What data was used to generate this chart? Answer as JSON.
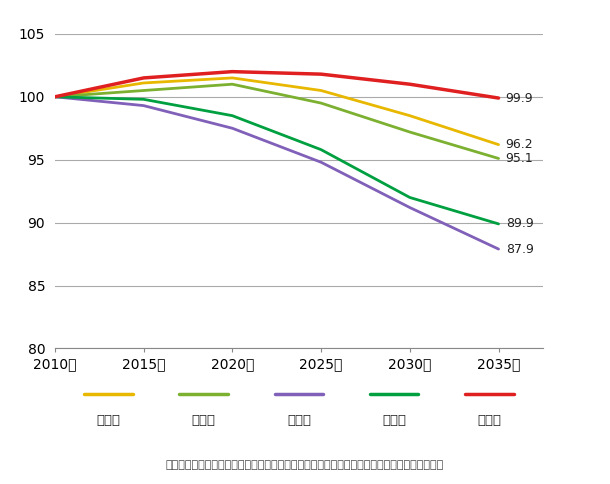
{
  "x": [
    2010,
    2015,
    2020,
    2025,
    2030,
    2035
  ],
  "series": [
    {
      "name": "東京都",
      "color": "#e8b800",
      "linewidth": 2.0,
      "values": [
        100.0,
        101.1,
        101.5,
        100.5,
        98.5,
        96.2
      ]
    },
    {
      "name": "愛知県",
      "color": "#7cb030",
      "linewidth": 2.0,
      "values": [
        100.0,
        100.5,
        101.0,
        99.5,
        97.2,
        95.1
      ]
    },
    {
      "name": "大阪府",
      "color": "#8060b8",
      "linewidth": 2.0,
      "values": [
        100.0,
        99.3,
        97.5,
        94.8,
        91.2,
        87.9
      ]
    },
    {
      "name": "福岡県",
      "color": "#00a040",
      "linewidth": 2.0,
      "values": [
        100.0,
        99.8,
        98.5,
        95.8,
        92.0,
        89.9
      ]
    },
    {
      "name": "沖縄県",
      "color": "#e02020",
      "linewidth": 2.5,
      "values": [
        100.0,
        101.5,
        102.0,
        101.8,
        101.0,
        99.9
      ]
    }
  ],
  "end_labels": [
    {
      "value": 99.9,
      "text": "99.9"
    },
    {
      "value": 96.2,
      "text": "96.2"
    },
    {
      "value": 95.1,
      "text": "95.1"
    },
    {
      "value": 89.9,
      "text": "89.9"
    },
    {
      "value": 87.9,
      "text": "87.9"
    }
  ],
  "ylim": [
    80,
    105
  ],
  "yticks": [
    80,
    85,
    90,
    95,
    100,
    105
  ],
  "xlim": [
    2010,
    2037.5
  ],
  "xticks": [
    2010,
    2015,
    2020,
    2025,
    2030,
    2035
  ],
  "xlabel_suffix": "年",
  "grid_color": "#aaaaaa",
  "background_color": "#ffffff",
  "legend_items": [
    {
      "name": "東京都",
      "color": "#e8b800"
    },
    {
      "name": "愛知県",
      "color": "#7cb030"
    },
    {
      "name": "大阪府",
      "color": "#8060b8"
    },
    {
      "name": "福岡県",
      "color": "#00a040"
    },
    {
      "name": "沖縄県",
      "color": "#e02020"
    }
  ],
  "footnote": "（国立社会保障・人口問題研究所『日本の人口の将来推計（都道府県別推計）』」より作成）"
}
